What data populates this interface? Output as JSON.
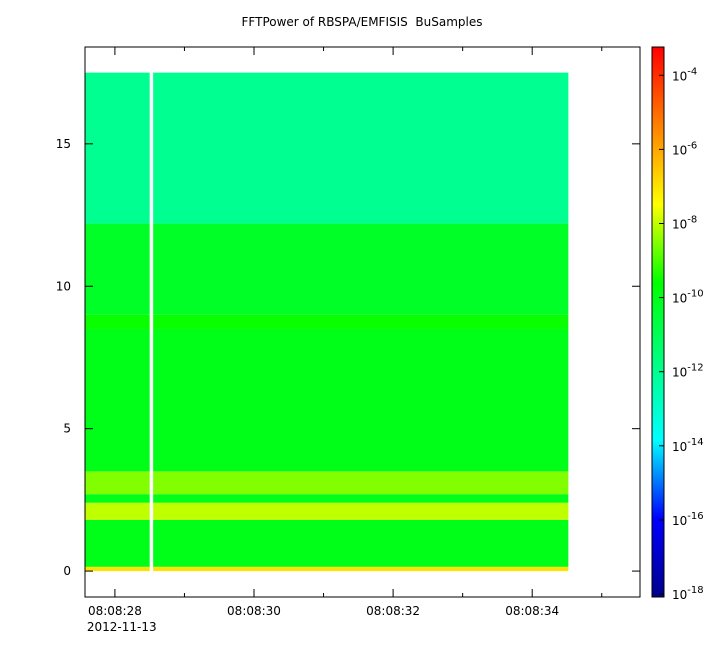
{
  "chart_data": {
    "type": "spectrogram",
    "title": "FFTPower of RBSPA/EMFISIS  BuSamples",
    "x_date_label": "2012-11-13",
    "xlim": [
      27.57,
      35.55
    ],
    "xticks": [
      {
        "value": 28,
        "label": "08:08:28"
      },
      {
        "value": 30,
        "label": "08:08:30"
      },
      {
        "value": 32,
        "label": "08:08:32"
      },
      {
        "value": 34,
        "label": "08:08:34"
      }
    ],
    "xminor_ticks": [
      29,
      31,
      33,
      35
    ],
    "ylim": [
      -0.91,
      18.4
    ],
    "yticks": [
      0,
      5,
      10,
      15
    ],
    "x_bins": [
      27.57,
      28.5,
      28.55,
      34.52
    ],
    "y_bins": [
      0,
      0.15,
      1.8,
      2.4,
      2.7,
      3.5,
      8.5,
      9.0,
      12.2,
      17.5
    ],
    "values": [
      [
        1e-07,
        1e-10,
        1e-08,
        1e-10,
        3e-09,
        1e-10,
        3e-10,
        6e-11,
        1e-12
      ],
      [
        null,
        null,
        null,
        null,
        null,
        null,
        null,
        null,
        null
      ],
      [
        1e-07,
        1e-10,
        1e-08,
        1e-10,
        3e-09,
        1e-10,
        3e-10,
        6e-11,
        1e-12
      ]
    ],
    "log_color_scale": true,
    "clim": [
      8.3e-19,
      0.00058
    ],
    "colormap": [
      "#00008b",
      "#0000ff",
      "#00ffff",
      "#00ff80",
      "#00ff00",
      "#ffff00",
      "#ff8000",
      "#ff0000"
    ],
    "cticks": [
      {
        "value": 0.0001,
        "label": "10",
        "exponent": "-4"
      },
      {
        "value": 1e-06,
        "label": "10",
        "exponent": "-6"
      },
      {
        "value": 1e-08,
        "label": "10",
        "exponent": "-8"
      },
      {
        "value": 1e-10,
        "label": "10",
        "exponent": "-10"
      },
      {
        "value": 1e-12,
        "label": "10",
        "exponent": "-12"
      },
      {
        "value": 1e-14,
        "label": "10",
        "exponent": "-14"
      },
      {
        "value": 1e-16,
        "label": "10",
        "exponent": "-16"
      },
      {
        "value": 1e-18,
        "label": "10",
        "exponent": "-18"
      }
    ]
  }
}
